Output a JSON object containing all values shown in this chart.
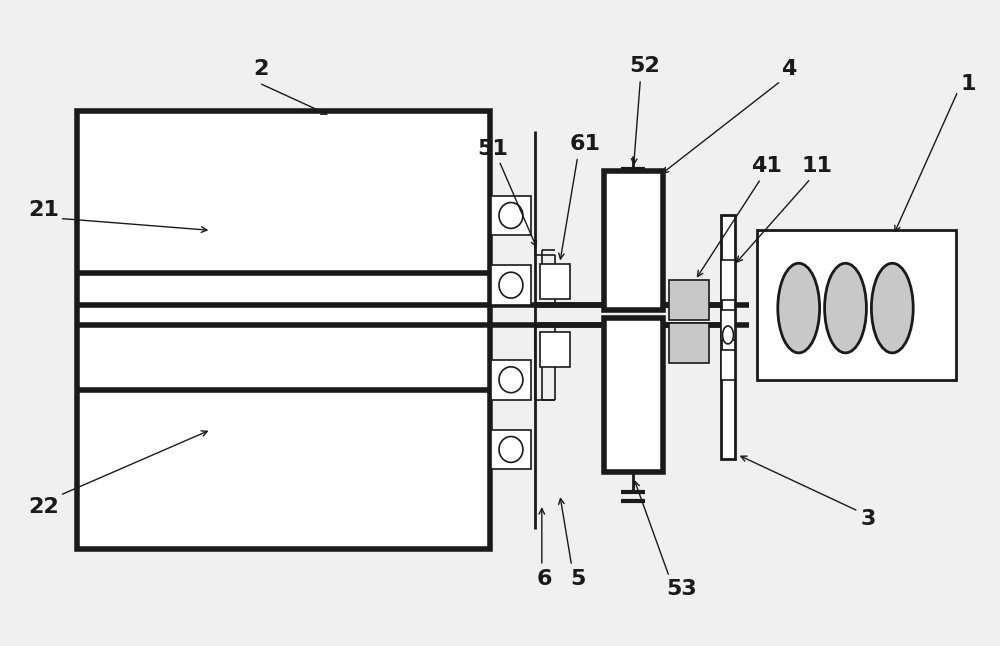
{
  "bg_color": "#f0f0f0",
  "line_color": "#1a1a1a",
  "gray_color": "#b0b0b0",
  "light_gray": "#c8c8c8",
  "fig_width": 10.0,
  "fig_height": 6.46,
  "dpi": 100
}
